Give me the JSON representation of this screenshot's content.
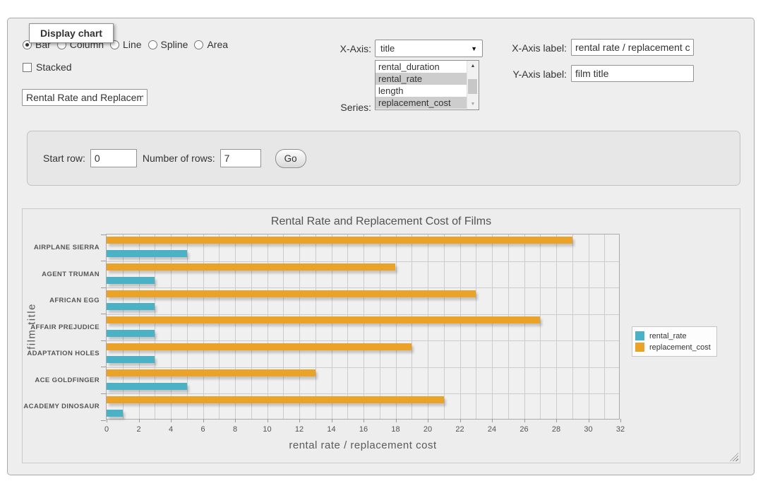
{
  "fieldset_legend": "Display chart",
  "chart_type": {
    "options": [
      "Bar",
      "Column",
      "Line",
      "Spline",
      "Area"
    ],
    "selected": "Bar"
  },
  "stacked": {
    "label": "Stacked",
    "checked": false
  },
  "chart_title_input": {
    "value": "Rental Rate and Replacement Cost of Films"
  },
  "x_axis": {
    "label": "X-Axis:",
    "selected_option": "title"
  },
  "series_picker": {
    "label": "Series:",
    "visible_options": [
      {
        "label": "rental_duration",
        "selected": false
      },
      {
        "label": "rental_rate",
        "selected": true
      },
      {
        "label": "length",
        "selected": false
      },
      {
        "label": "replacement_cost",
        "selected": true
      }
    ]
  },
  "x_axis_label_input": {
    "label": "X-Axis label:",
    "value": "rental rate / replacement cost"
  },
  "y_axis_label_input": {
    "label": "Y-Axis label:",
    "value": "film title"
  },
  "row_controls": {
    "start_row_label": "Start row:",
    "start_row_value": "0",
    "number_of_rows_label": "Number of rows:",
    "number_of_rows_value": "7",
    "go_button": "Go"
  },
  "chart_data": {
    "type": "bar",
    "orientation": "horizontal",
    "title": "Rental Rate and Replacement Cost of Films",
    "xlabel": "rental rate / replacement cost",
    "ylabel": "film title",
    "categories": [
      "AIRPLANE SIERRA",
      "AGENT TRUMAN",
      "AFRICAN EGG",
      "AFFAIR PREJUDICE",
      "ADAPTATION HOLES",
      "ACE GOLDFINGER",
      "ACADEMY DINOSAUR"
    ],
    "series": [
      {
        "name": "rental_rate",
        "color": "#4bb2c5",
        "values": [
          4.99,
          2.99,
          2.99,
          2.99,
          2.99,
          4.99,
          0.99
        ]
      },
      {
        "name": "replacement_cost",
        "color": "#EAA228",
        "values": [
          28.99,
          17.99,
          22.99,
          26.99,
          18.99,
          12.99,
          20.99
        ]
      }
    ],
    "xlim": [
      0,
      32
    ],
    "xtick_step": 2,
    "minor_grid_step": 1,
    "legend_position": "right",
    "grid": true
  },
  "colors": {
    "series_teal": "#4bb2c5",
    "series_orange": "#EAA228",
    "grid_line": "#cccccc",
    "chart_text": "#535353"
  }
}
